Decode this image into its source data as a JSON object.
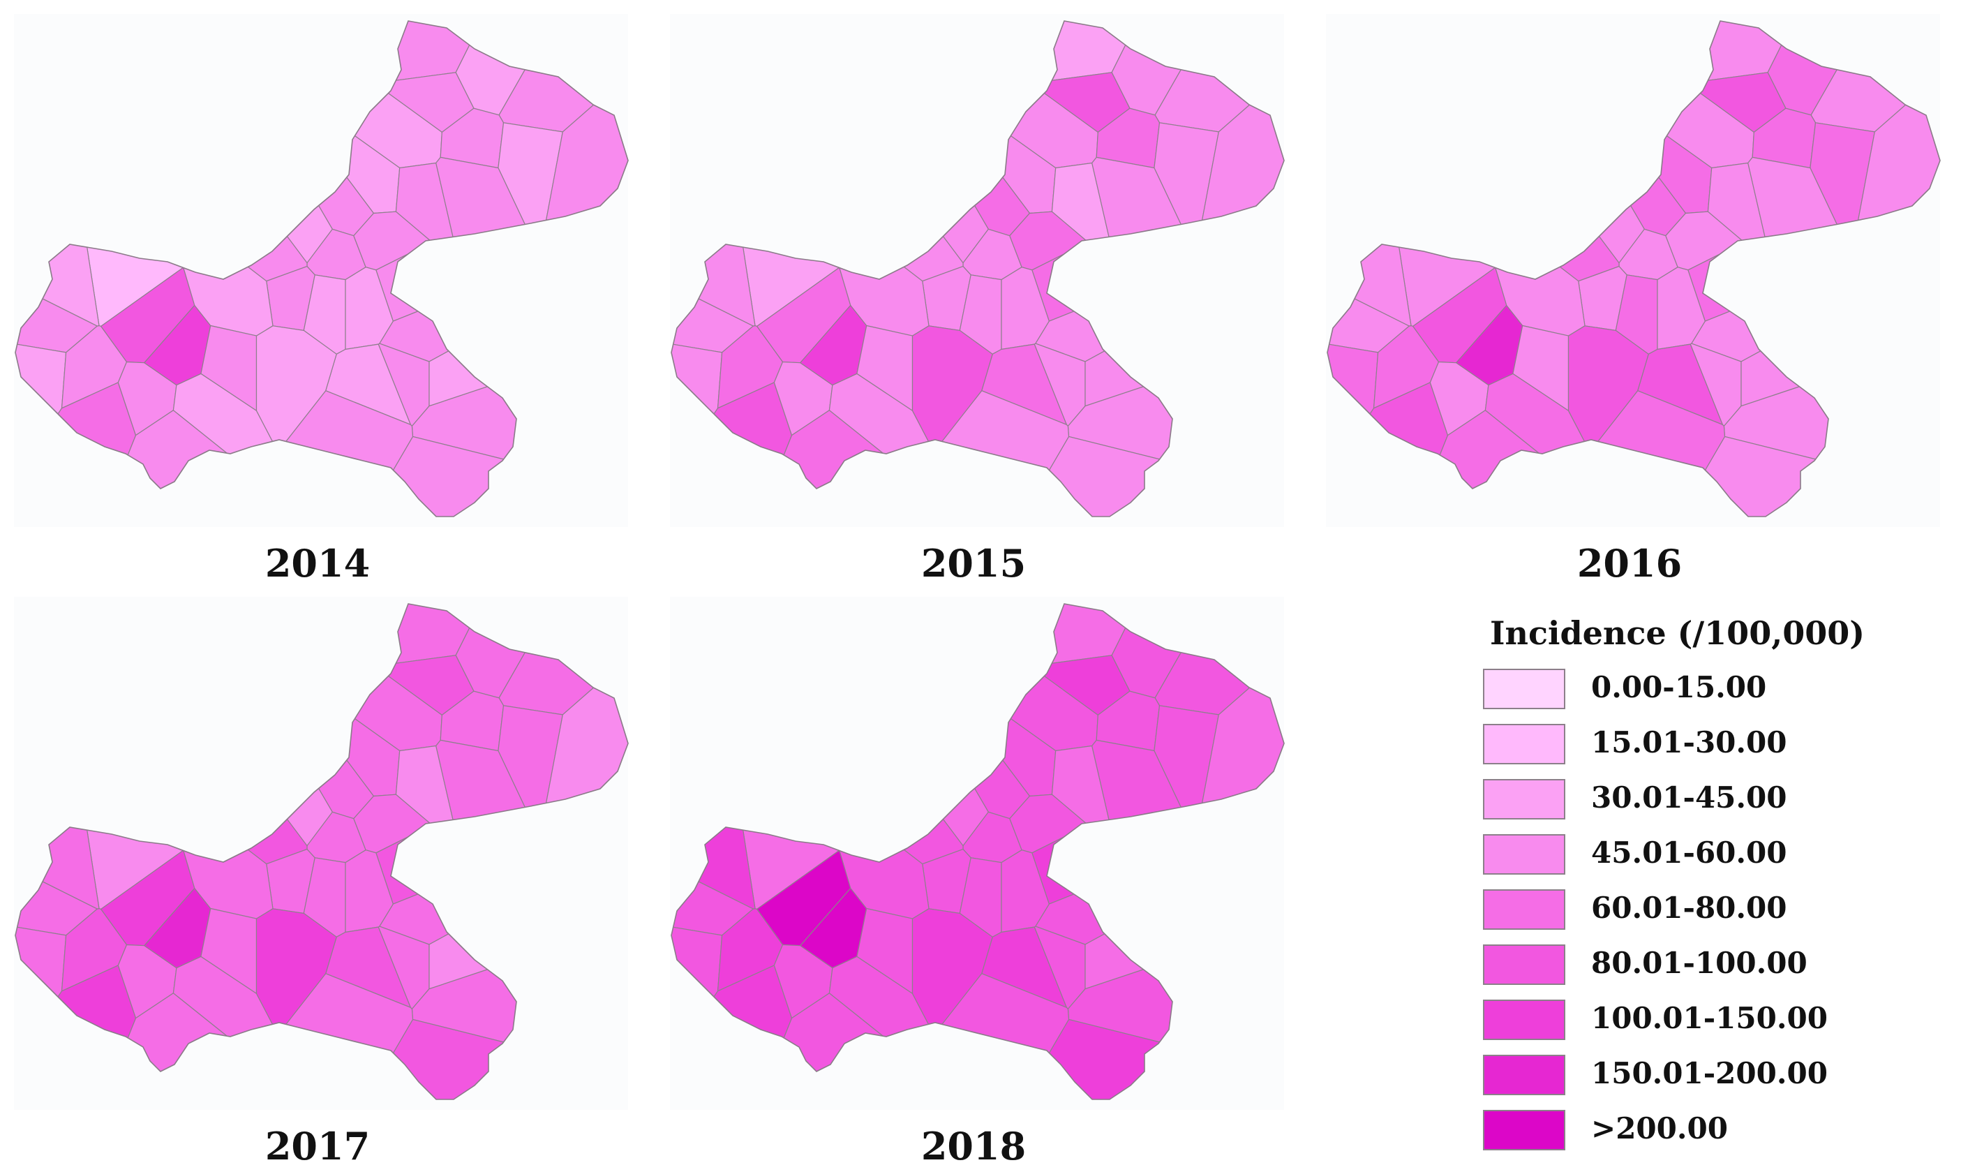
{
  "legend": {
    "title": "Incidence (/100,000)",
    "classes": [
      {
        "label": "0.00-15.00",
        "color": "#ffd4ff"
      },
      {
        "label": "15.01-30.00",
        "color": "#ffb9fc"
      },
      {
        "label": "30.01-45.00",
        "color": "#fba1f4"
      },
      {
        "label": "45.01-60.00",
        "color": "#f88bee"
      },
      {
        "label": "60.01-80.00",
        "color": "#f56de6"
      },
      {
        "label": "80.01-100.00",
        "color": "#f257e0"
      },
      {
        "label": "100.01-150.00",
        "color": "#ee3fda"
      },
      {
        "label": "150.01-200.00",
        "color": "#e627d2"
      },
      {
        "label": ">200.00",
        "color": "#dc06c8"
      }
    ]
  },
  "maps": [
    {
      "year": "2014",
      "classes": [
        3,
        2,
        3,
        3,
        2,
        3,
        2,
        3,
        2,
        3,
        3,
        3,
        2,
        3,
        3,
        3,
        3,
        2,
        2,
        3,
        3,
        3,
        2,
        3,
        3,
        2,
        3,
        5,
        1,
        2,
        3,
        2,
        3,
        4,
        3,
        3,
        2,
        6,
        2,
        3,
        2
      ]
    },
    {
      "year": "2015",
      "classes": [
        2,
        3,
        3,
        5,
        3,
        4,
        3,
        3,
        3,
        2,
        3,
        4,
        3,
        3,
        4,
        3,
        3,
        3,
        3,
        4,
        3,
        3,
        3,
        3,
        3,
        4,
        3,
        4,
        2,
        3,
        3,
        3,
        4,
        5,
        3,
        4,
        3,
        6,
        3,
        3,
        5
      ]
    },
    {
      "year": "2016",
      "classes": [
        3,
        4,
        3,
        5,
        3,
        4,
        4,
        3,
        4,
        3,
        3,
        4,
        3,
        3,
        3,
        4,
        3,
        4,
        3,
        4,
        3,
        3,
        3,
        3,
        3,
        5,
        4,
        5,
        3,
        3,
        3,
        4,
        4,
        5,
        3,
        4,
        4,
        7,
        3,
        3,
        5
      ]
    },
    {
      "year": "2017",
      "classes": [
        4,
        4,
        4,
        5,
        4,
        4,
        4,
        3,
        4,
        3,
        4,
        4,
        3,
        4,
        4,
        5,
        4,
        4,
        4,
        5,
        4,
        4,
        3,
        4,
        5,
        5,
        4,
        6,
        3,
        4,
        4,
        4,
        5,
        6,
        4,
        4,
        4,
        7,
        4,
        4,
        6
      ]
    },
    {
      "year": "2018",
      "classes": [
        4,
        5,
        5,
        6,
        5,
        5,
        5,
        4,
        5,
        4,
        5,
        5,
        4,
        5,
        5,
        5,
        5,
        5,
        5,
        6,
        5,
        5,
        4,
        5,
        6,
        6,
        5,
        8,
        4,
        6,
        5,
        5,
        6,
        6,
        5,
        5,
        5,
        8,
        5,
        5,
        6
      ]
    }
  ]
}
